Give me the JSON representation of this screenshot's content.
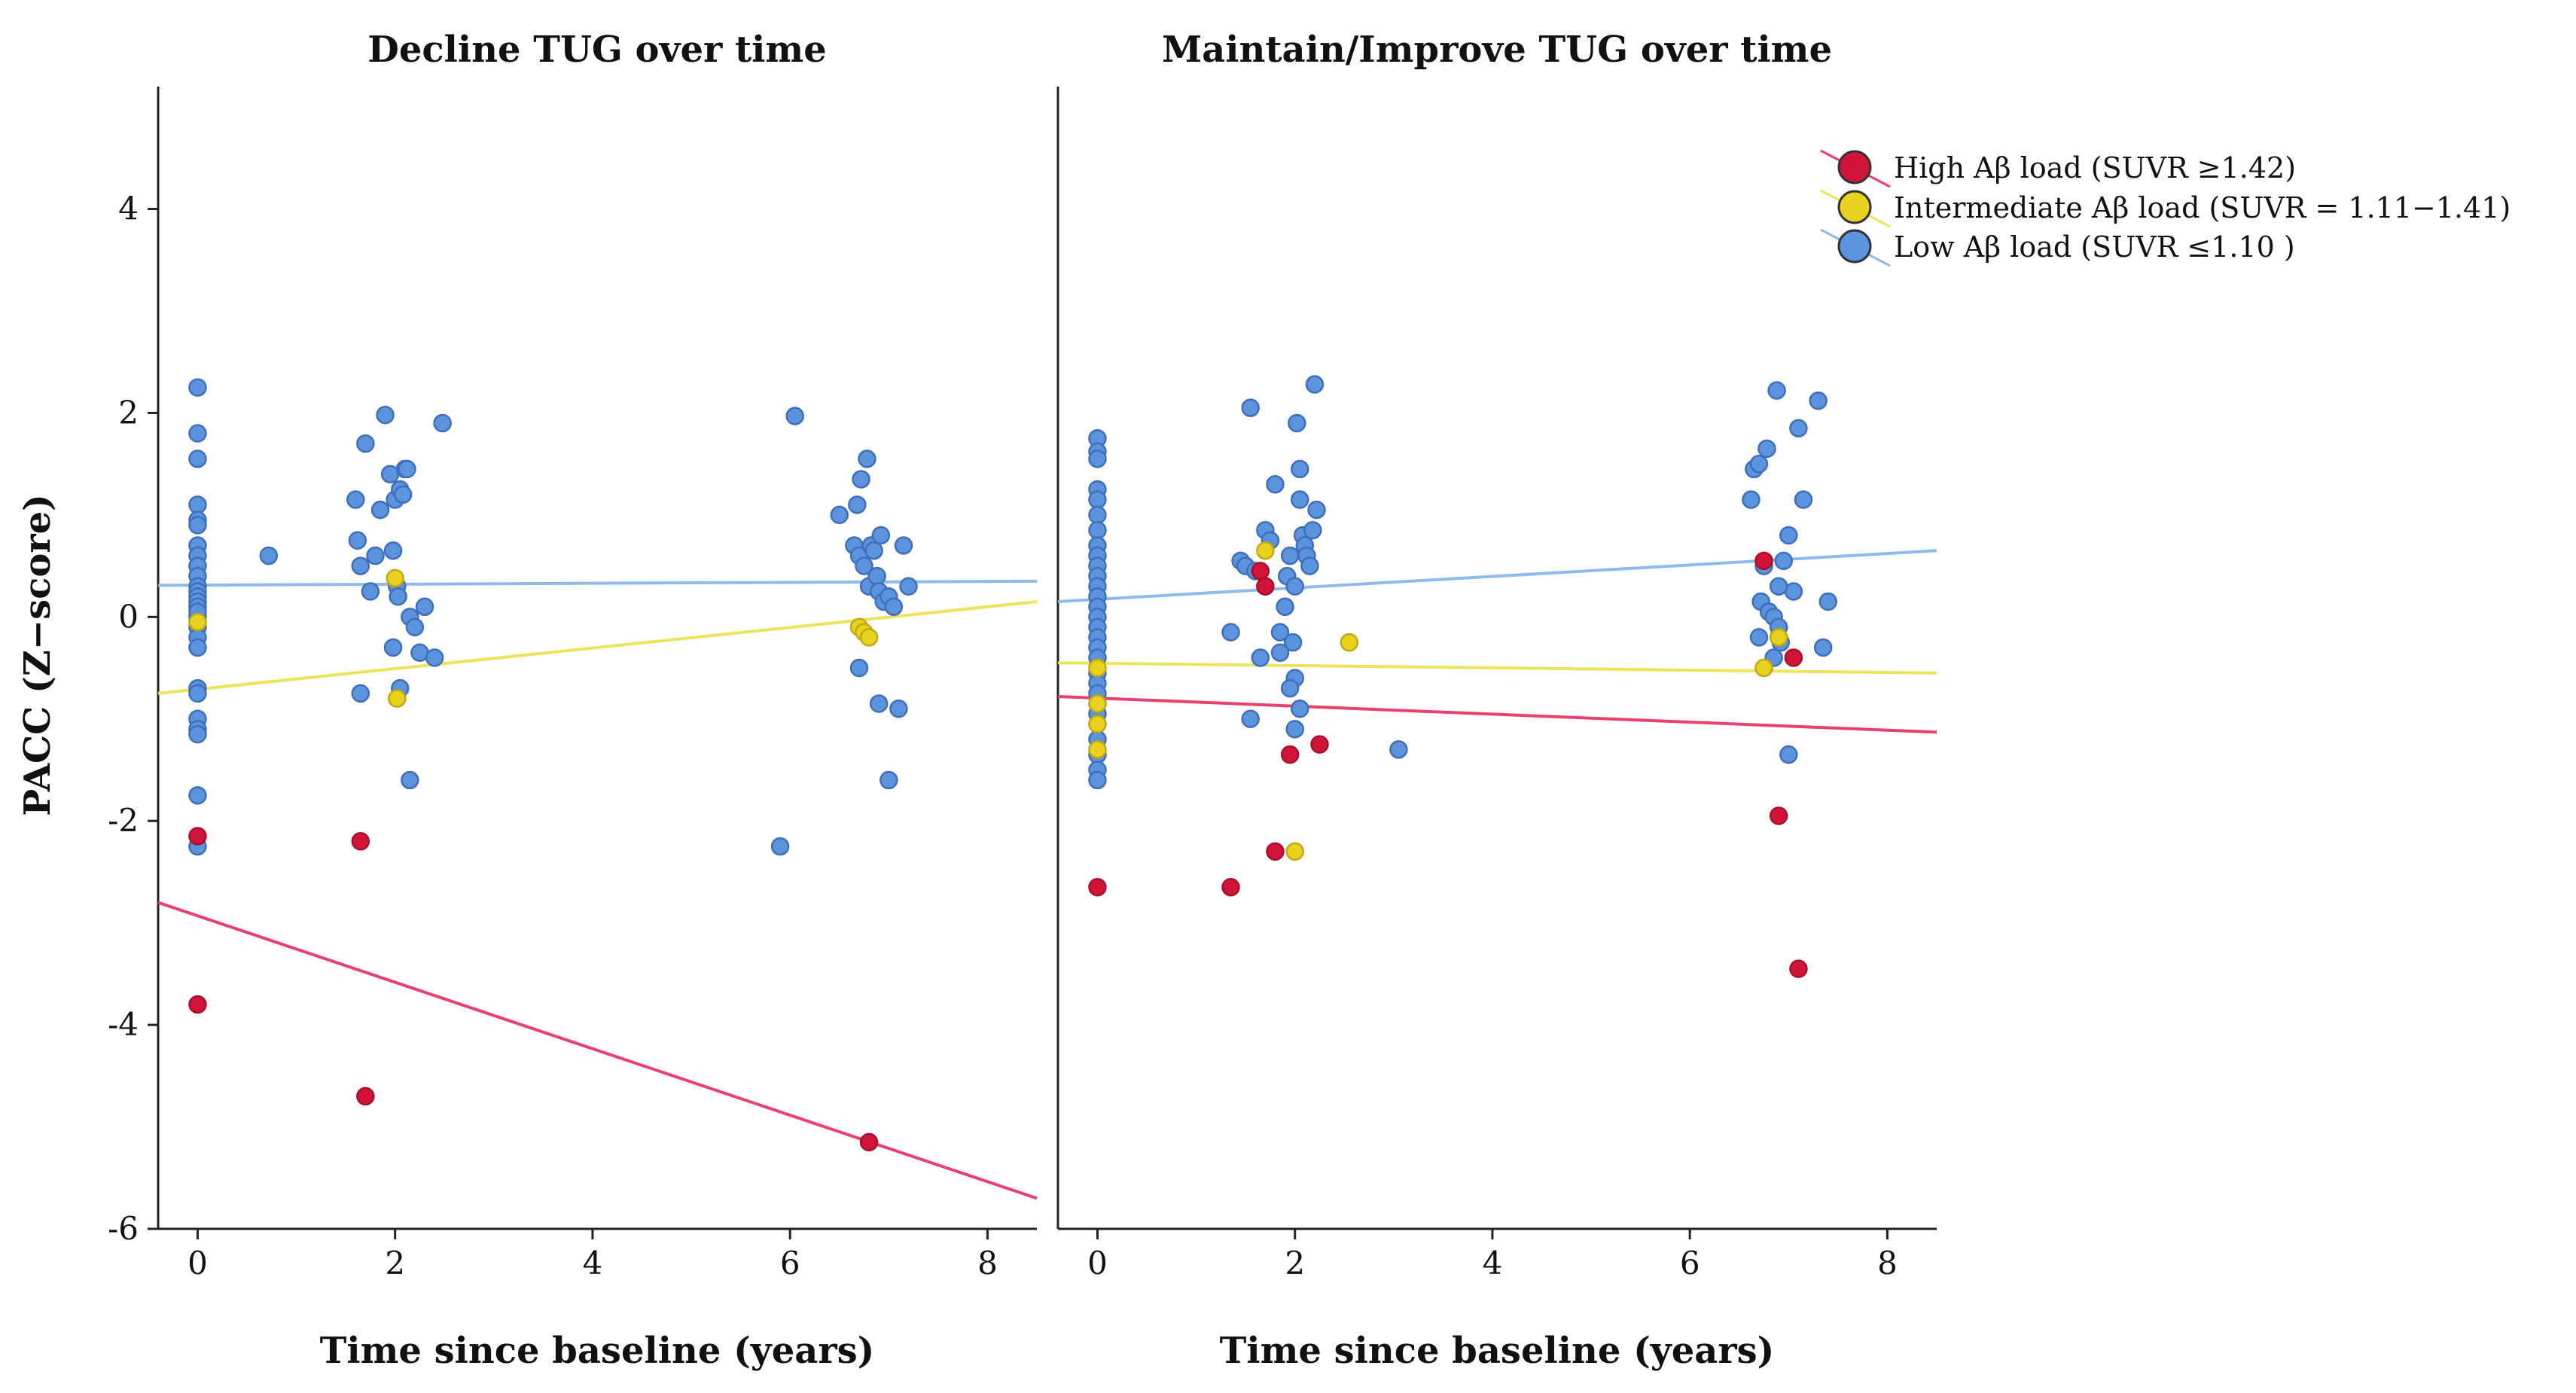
{
  "chart_data": {
    "type": "scatter",
    "ylabel": "PACC (Z−score)",
    "xlabel": "Time since baseline (years)",
    "xlim": [
      -0.4,
      8.5
    ],
    "ylim": [
      -6.0,
      5.2
    ],
    "xticks": [
      0,
      2,
      4,
      6,
      8
    ],
    "yticks": [
      -6,
      -4,
      -2,
      0,
      2,
      4
    ],
    "grid": false,
    "legend_position": "top-right",
    "colors": {
      "high": "#d2143a",
      "intermediate": "#e8d21e",
      "low": "#5b93dc",
      "high_line": "#e8426c",
      "intermediate_line": "#ece45a",
      "low_line": "#8ebaec"
    },
    "legend": [
      {
        "key": "high",
        "label": "High Aβ load (SUVR ≥1.42)"
      },
      {
        "key": "intermediate",
        "label": "Intermediate Aβ load (SUVR = 1.11−1.41)"
      },
      {
        "key": "low",
        "label": "Low Aβ load (SUVR ≤1.10 )"
      }
    ],
    "panels": [
      {
        "title": "Decline TUG over time",
        "series": [
          {
            "key": "low",
            "name": "Low Aβ load",
            "x": [
              0,
              0,
              0,
              0,
              0,
              0,
              0,
              0,
              0,
              0,
              0,
              0,
              0,
              0,
              0,
              0,
              0,
              0,
              0,
              0,
              0,
              0,
              0,
              0,
              0,
              0,
              0,
              0.72,
              1.6,
              1.62,
              1.65,
              1.7,
              1.75,
              1.8,
              1.85,
              1.9,
              1.95,
              1.98,
              2.0,
              2.02,
              2.03,
              2.05,
              2.08,
              2.1,
              2.12,
              2.15,
              2.2,
              2.25,
              2.3,
              2.4,
              2.48,
              1.65,
              2.05,
              2.15,
              1.98,
              6.05,
              5.9,
              6.5,
              6.65,
              6.7,
              6.72,
              6.75,
              6.78,
              6.8,
              6.82,
              6.85,
              6.88,
              6.9,
              6.92,
              6.95,
              7.0,
              7.05,
              7.1,
              7.15,
              7.2,
              6.7,
              6.9,
              6.68,
              7.0
            ],
            "y": [
              2.25,
              1.8,
              1.55,
              1.1,
              0.95,
              0.9,
              0.7,
              0.6,
              0.5,
              0.4,
              0.3,
              0.25,
              0.2,
              0.15,
              0.1,
              0.0,
              -0.1,
              -0.2,
              -0.3,
              -0.7,
              -0.75,
              -1.0,
              -1.1,
              -1.15,
              -1.75,
              -2.25,
              0.05,
              0.6,
              1.15,
              0.75,
              0.5,
              1.7,
              0.25,
              0.6,
              1.05,
              1.98,
              1.4,
              0.65,
              1.15,
              0.3,
              0.2,
              1.25,
              1.2,
              1.45,
              1.45,
              0.0,
              -0.1,
              -0.35,
              0.1,
              -0.4,
              1.9,
              -0.75,
              -0.7,
              -1.6,
              -0.3,
              1.97,
              -2.25,
              1.0,
              0.7,
              0.6,
              1.35,
              0.5,
              1.55,
              0.3,
              0.7,
              0.65,
              0.4,
              0.25,
              0.8,
              0.15,
              0.2,
              0.1,
              -0.9,
              0.7,
              0.3,
              -0.5,
              -0.85,
              1.1,
              -1.6
            ],
            "trend": {
              "x0": -0.4,
              "y0": 0.31,
              "x1": 8.5,
              "y1": 0.35
            }
          },
          {
            "key": "intermediate",
            "name": "Intermediate Aβ load",
            "x": [
              0,
              2.0,
              2.02,
              6.7,
              6.75,
              6.8
            ],
            "y": [
              -0.05,
              0.38,
              -0.8,
              -0.1,
              -0.15,
              -0.2
            ],
            "trend": {
              "x0": -0.4,
              "y0": -0.75,
              "x1": 8.5,
              "y1": 0.15
            }
          },
          {
            "key": "high",
            "name": "High Aβ load",
            "x": [
              0,
              0,
              1.65,
              1.7,
              6.8
            ],
            "y": [
              -2.15,
              -3.8,
              -2.2,
              -4.7,
              -5.15
            ],
            "trend": {
              "x0": -0.4,
              "y0": -2.8,
              "x1": 8.5,
              "y1": -5.7
            }
          }
        ]
      },
      {
        "title": "Maintain/Improve TUG over time",
        "series": [
          {
            "key": "low",
            "name": "Low Aβ load",
            "x": [
              0,
              0,
              0,
              0,
              0,
              0,
              0,
              0,
              0,
              0,
              0,
              0,
              0,
              0,
              0,
              0,
              0,
              0,
              0,
              0,
              0,
              0,
              0,
              0,
              0,
              0,
              0,
              0,
              0,
              1.35,
              1.45,
              1.5,
              1.55,
              1.6,
              1.65,
              1.7,
              1.75,
              1.8,
              1.85,
              1.9,
              1.92,
              1.95,
              1.98,
              2.0,
              2.0,
              2.02,
              2.05,
              2.05,
              2.08,
              2.1,
              2.12,
              2.15,
              2.18,
              2.2,
              2.22,
              1.95,
              2.0,
              2.05,
              1.55,
              1.85,
              3.05,
              6.62,
              6.65,
              6.7,
              6.72,
              6.75,
              6.78,
              6.8,
              6.85,
              6.88,
              6.9,
              6.92,
              6.95,
              7.0,
              7.05,
              7.1,
              7.15,
              7.3,
              7.35,
              7.4,
              7.0,
              6.85,
              6.9,
              6.7
            ],
            "y": [
              1.75,
              1.62,
              1.55,
              1.25,
              1.15,
              1.0,
              0.85,
              0.7,
              0.6,
              0.5,
              0.4,
              0.3,
              0.2,
              0.1,
              0.0,
              -0.1,
              -0.2,
              -0.3,
              -0.4,
              -0.55,
              -0.65,
              -0.75,
              -0.85,
              -0.95,
              -1.05,
              -1.2,
              -1.35,
              -1.5,
              -1.6,
              -0.15,
              0.55,
              0.5,
              2.05,
              0.45,
              -0.4,
              0.85,
              0.75,
              1.3,
              -0.15,
              0.1,
              0.4,
              0.6,
              -0.25,
              0.3,
              -0.6,
              1.9,
              1.45,
              1.15,
              0.8,
              0.7,
              0.6,
              0.5,
              0.85,
              2.28,
              1.05,
              -0.7,
              -1.1,
              -0.9,
              -1.0,
              -0.35,
              -1.3,
              1.15,
              1.45,
              1.5,
              0.15,
              0.5,
              1.65,
              0.05,
              0.0,
              2.22,
              -0.1,
              -0.25,
              0.55,
              0.8,
              0.25,
              1.85,
              1.15,
              2.12,
              -0.3,
              0.15,
              -1.35,
              -0.4,
              0.3,
              -0.2
            ],
            "trend": {
              "x0": -0.4,
              "y0": 0.15,
              "x1": 8.5,
              "y1": 0.65
            }
          },
          {
            "key": "intermediate",
            "name": "Intermediate Aβ load",
            "x": [
              0,
              0,
              0,
              0,
              1.7,
              2.0,
              2.55,
              6.75,
              6.9
            ],
            "y": [
              -0.5,
              -0.85,
              -1.05,
              -1.3,
              0.65,
              -2.3,
              -0.25,
              -0.5,
              -0.2
            ],
            "trend": {
              "x0": -0.4,
              "y0": -0.45,
              "x1": 8.5,
              "y1": -0.55
            }
          },
          {
            "key": "high",
            "name": "High Aβ load",
            "x": [
              0,
              1.35,
              1.65,
              1.7,
              1.8,
              1.95,
              2.25,
              6.75,
              6.9,
              7.05,
              7.1
            ],
            "y": [
              -2.65,
              -2.65,
              0.45,
              0.3,
              -2.3,
              -1.35,
              -1.25,
              0.55,
              -1.95,
              -0.4,
              -3.45
            ],
            "trend": {
              "x0": -0.4,
              "y0": -0.78,
              "x1": 8.5,
              "y1": -1.13
            }
          }
        ]
      }
    ]
  }
}
